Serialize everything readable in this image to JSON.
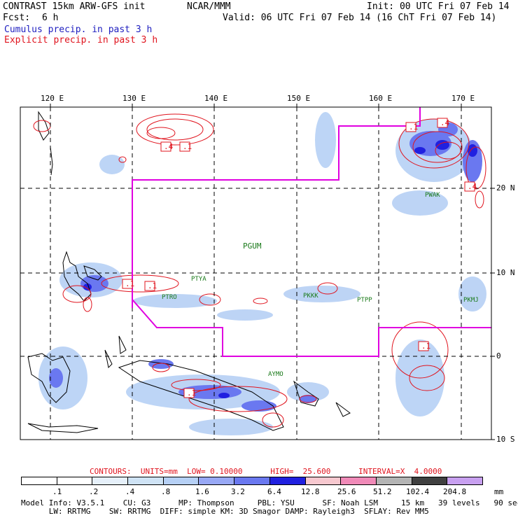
{
  "header": {
    "title_left": "CONTRAST 15km ARW-GFS init",
    "org": "NCAR/MMM",
    "init": "Init: 00 UTC Fri 07 Feb 14",
    "fcst_label": "Fcst:",
    "fcst_value": "6 h",
    "valid": "Valid: 06 UTC Fri 07 Feb 14 (16 ChT Fri 07 Feb 14)",
    "cumulus": "Cumulus precip. in past 3 h",
    "explicit": "Explicit precip. in past 3 h"
  },
  "map": {
    "lon_labels": [
      "120 E",
      "130 E",
      "140 E",
      "150 E",
      "160 E",
      "170 E"
    ],
    "lat_labels": [
      "20 N",
      "10 N",
      "0",
      "10 S"
    ],
    "stations": [
      "PGUM",
      "PTYA",
      "PTRO",
      "PKKK",
      "PTPP",
      "PKMJ",
      "PWAK",
      "AYMO"
    ],
    "contour_labels": [
      ".4",
      ".1",
      ".4",
      ".1",
      ".1",
      ".1",
      ".4",
      ".1",
      ".1"
    ],
    "colors": {
      "coast": "#000000",
      "boundary": "#e000e0",
      "contour": "#e0141e",
      "precip_light": "#b6d0f5",
      "precip_mid": "#6a78f0",
      "precip_heavy": "#2020e0"
    }
  },
  "contours_text": {
    "prefix": "CONTOURS:  UNITS=mm  LOW= 0.10000      HIGH=  25.600      INTERVAL=X  4.0000"
  },
  "legend": {
    "labels": [
      ".1",
      ".2",
      ".4",
      ".8",
      "1.6",
      "3.2",
      "6.4",
      "12.8",
      "25.6",
      "51.2",
      "102.4",
      "204.8"
    ],
    "unit": "mm",
    "colors": [
      "#ffffff",
      "#ffffff",
      "#e6f0fa",
      "#cfe3f5",
      "#b6d0f5",
      "#98a8f5",
      "#6a78f0",
      "#2020e0",
      "#f7c8cf",
      "#f08ab8",
      "#b4b4b4",
      "#404040",
      "#c8a0f0"
    ]
  },
  "footer": {
    "line1": "Model Info: V3.5.1    CU: G3      MP: Thompson     PBL: YSU      SF: Noah LSM     15 km   39 levels   90 sec",
    "line2": "      LW: RRTMG    SW: RRTMG  DIFF: simple KM: 3D Smagor DAMP: Rayleigh3  SFLAY: Rev MM5"
  }
}
